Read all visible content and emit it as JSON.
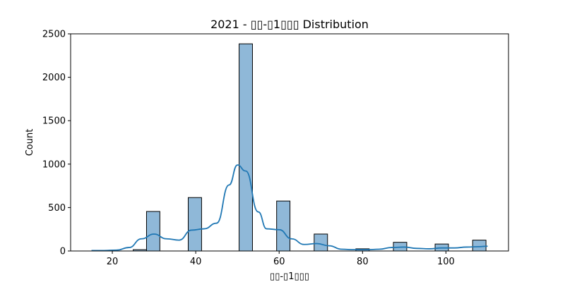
{
  "chart_data": {
    "type": "bar",
    "title": "2021 - ▯▯-▯1▯▯▯ Distribution",
    "xlabel": "▯▯-▯1▯▯▯",
    "ylabel": "Count",
    "xlim": [
      10,
      115
    ],
    "ylim": [
      0,
      2500
    ],
    "x_ticks": [
      20,
      40,
      60,
      80,
      100
    ],
    "y_ticks": [
      0,
      500,
      1000,
      1500,
      2000,
      2500
    ],
    "grid": false,
    "legend": "none",
    "bar_color": "#8fb8d8",
    "bar_edge_color": "#000000",
    "kde_color": "#1f77b4",
    "bins": [
      {
        "x0": 25.0,
        "x1": 28.2,
        "count": 15
      },
      {
        "x0": 28.2,
        "x1": 31.4,
        "count": 455
      },
      {
        "x0": 38.2,
        "x1": 41.4,
        "count": 615
      },
      {
        "x0": 50.4,
        "x1": 53.6,
        "count": 2385
      },
      {
        "x0": 59.4,
        "x1": 62.6,
        "count": 575
      },
      {
        "x0": 68.4,
        "x1": 71.6,
        "count": 195
      },
      {
        "x0": 78.4,
        "x1": 81.6,
        "count": 25
      },
      {
        "x0": 87.4,
        "x1": 90.6,
        "count": 100
      },
      {
        "x0": 97.4,
        "x1": 100.6,
        "count": 80
      },
      {
        "x0": 106.4,
        "x1": 109.6,
        "count": 125
      }
    ],
    "kde": {
      "x": [
        15,
        18,
        21,
        24,
        27,
        30,
        33,
        36,
        39,
        42,
        45,
        48,
        50,
        52,
        55,
        57,
        60,
        63,
        66,
        69,
        72,
        75,
        78,
        81,
        84,
        87,
        90,
        93,
        96,
        99,
        102,
        105,
        108,
        110
      ],
      "y": [
        5,
        5,
        10,
        40,
        140,
        195,
        140,
        125,
        240,
        255,
        320,
        760,
        990,
        920,
        450,
        255,
        245,
        140,
        75,
        85,
        60,
        20,
        15,
        15,
        20,
        40,
        45,
        30,
        25,
        35,
        35,
        45,
        50,
        55
      ]
    }
  }
}
